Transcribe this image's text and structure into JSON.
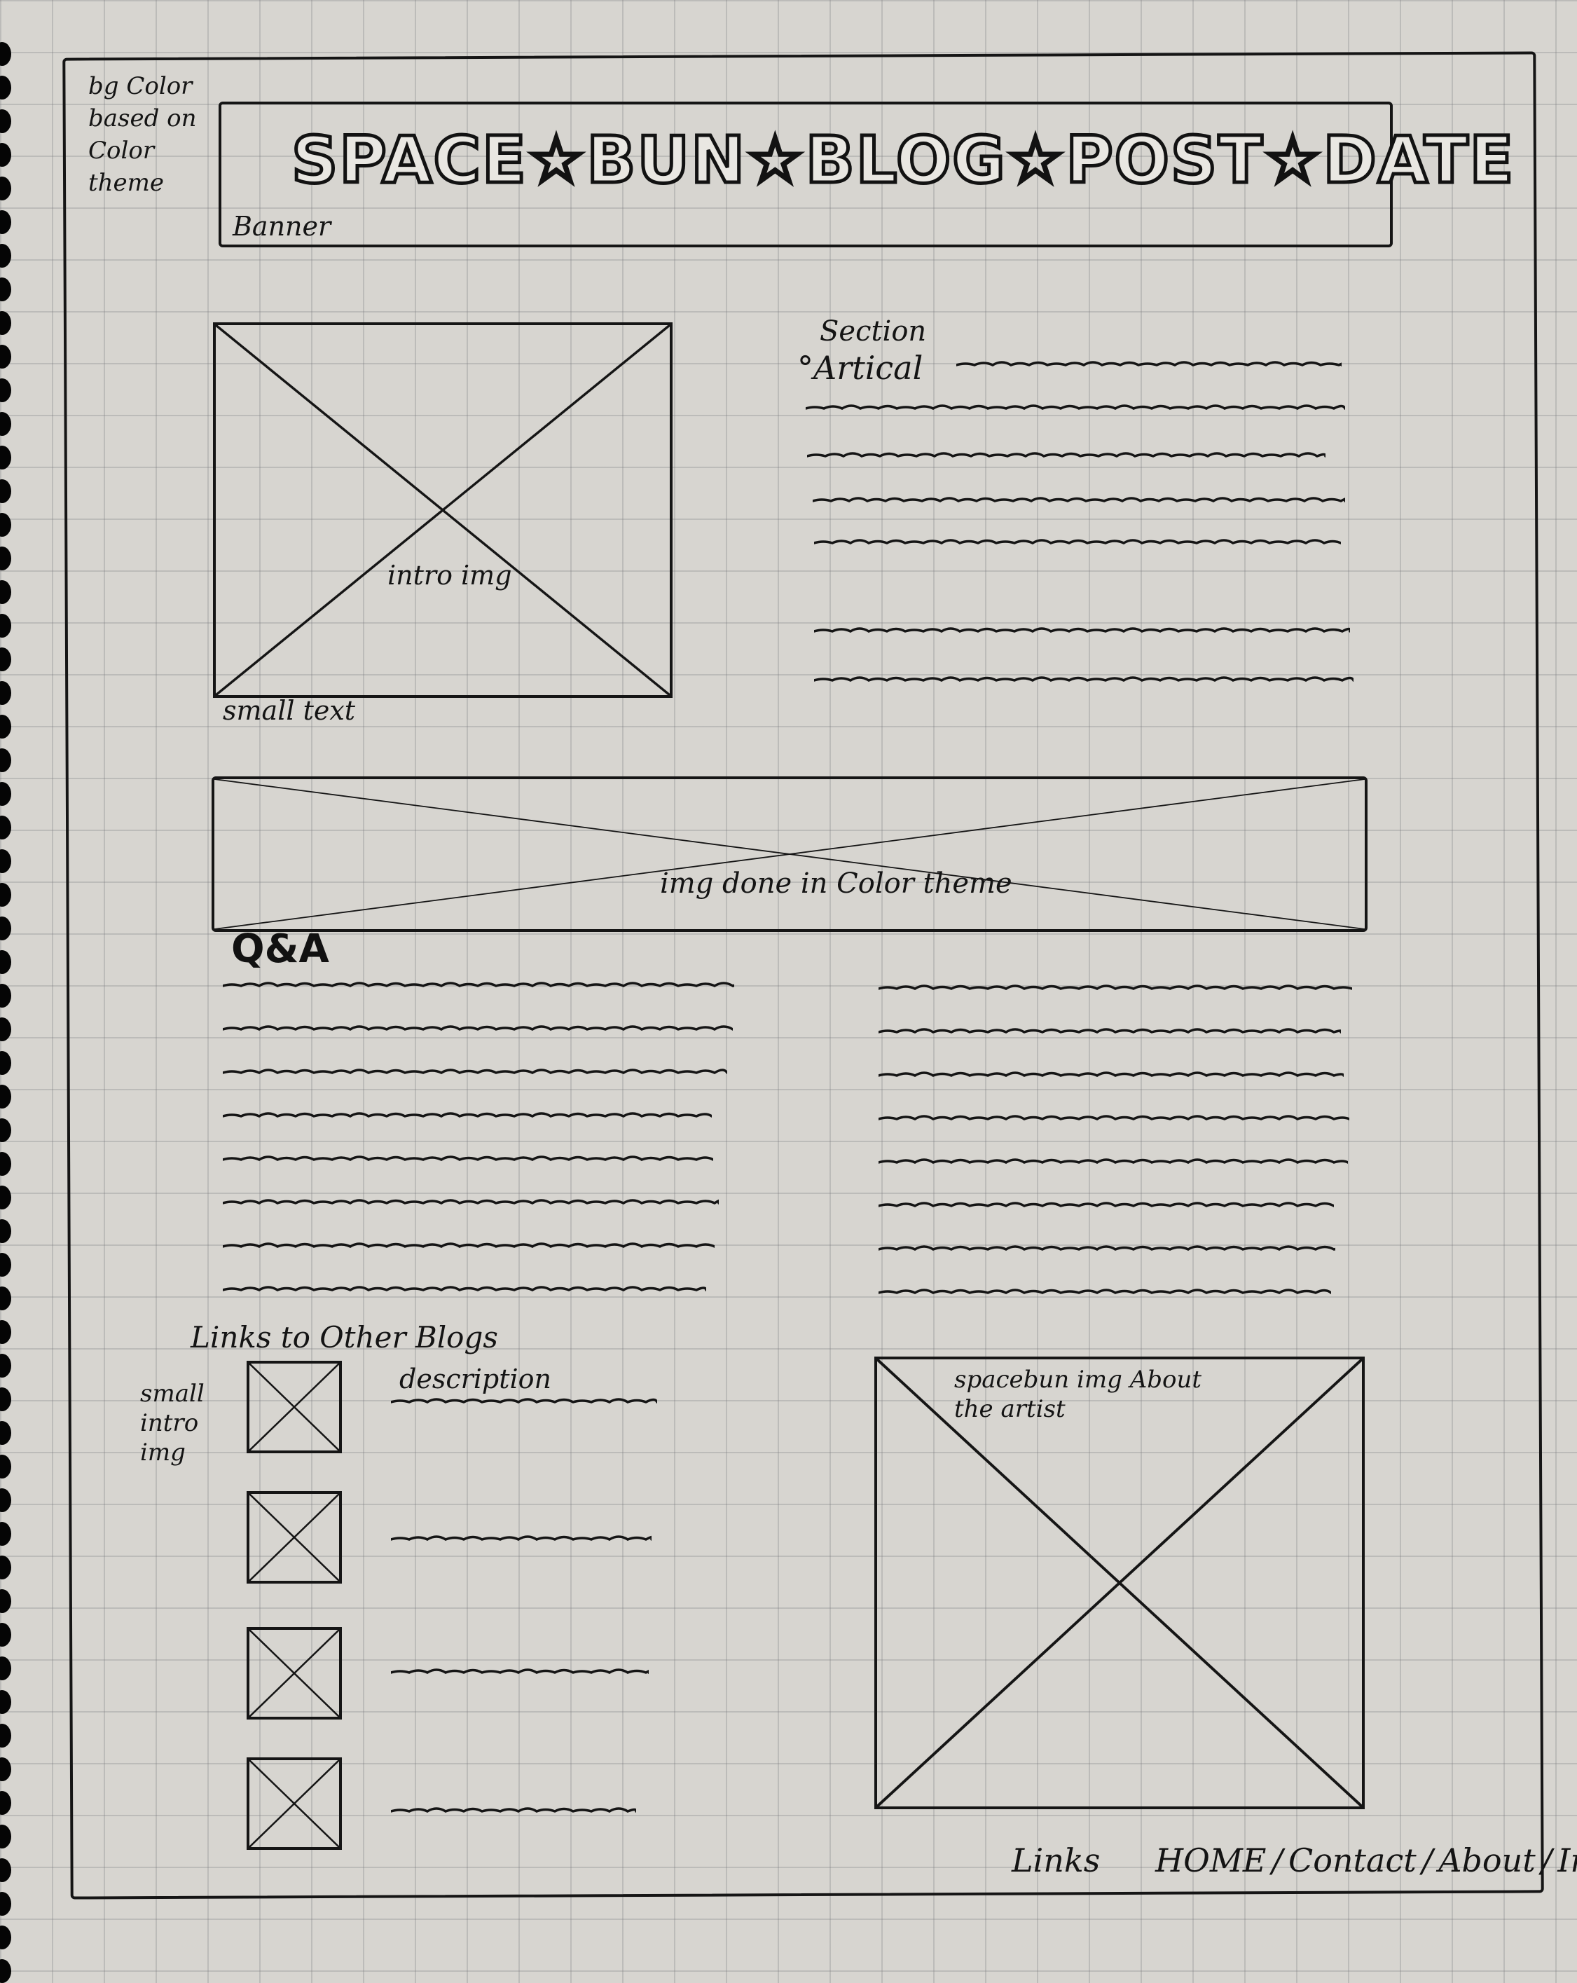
{
  "bg_note": "bg Color based on Color theme",
  "banner": {
    "title": "SPACE☆BUN☆BLOG☆POST☆DATE",
    "label": "Banner"
  },
  "intro": {
    "image_label": "intro img",
    "caption": "small text"
  },
  "article": {
    "heading": "Section",
    "bullet": "Artical"
  },
  "theme_image": {
    "label": "img done in Color theme"
  },
  "qa": {
    "heading": "Q&A"
  },
  "links_section": {
    "heading": "Links to Other Blogs",
    "thumb_label": "small intro img",
    "description_label": "description"
  },
  "artist_image": {
    "label": "spacebun img About the artist"
  },
  "footer": {
    "links_label": "Links",
    "nav": [
      "HOME",
      "Contact",
      "About",
      "Index"
    ],
    "separator": "/"
  }
}
